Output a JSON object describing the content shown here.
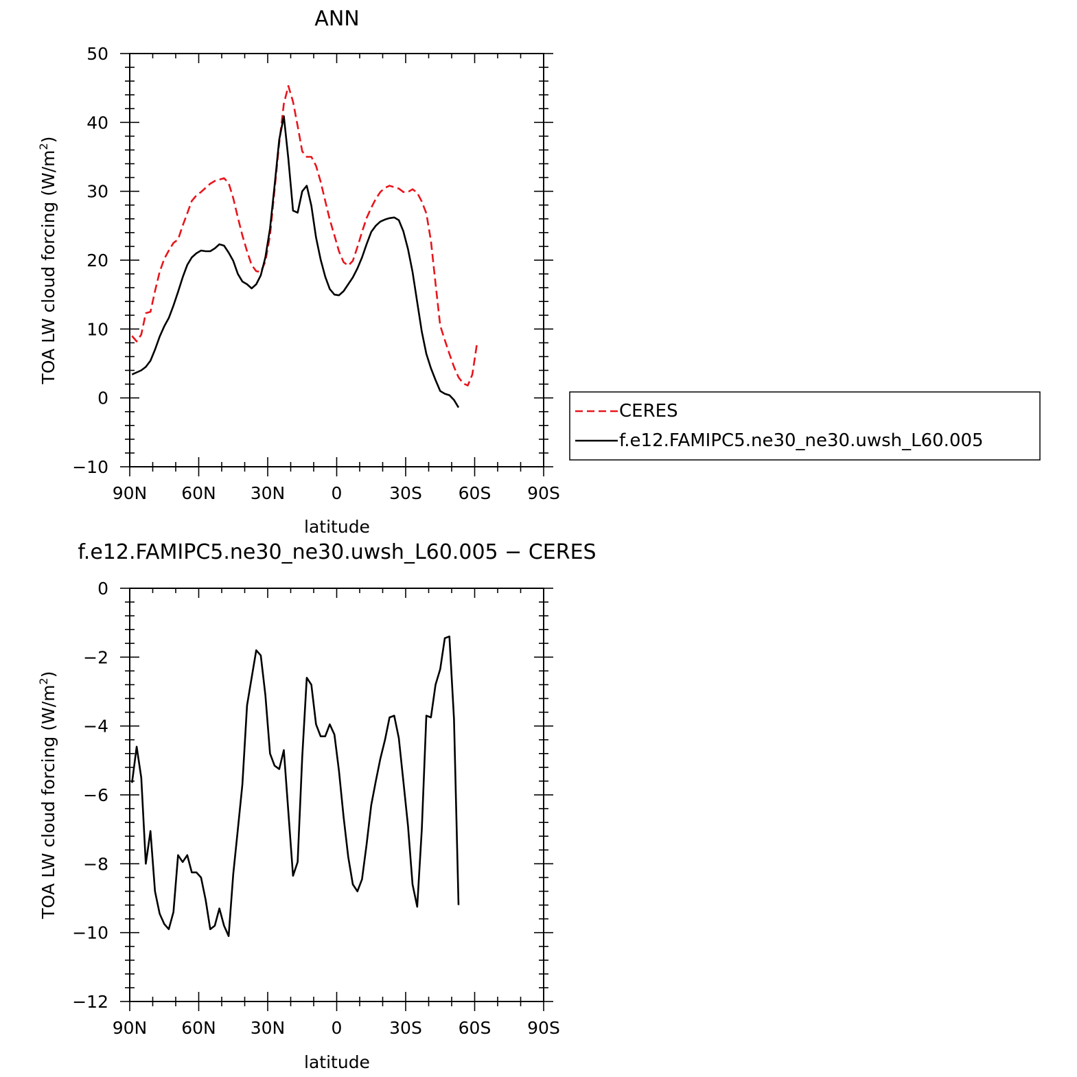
{
  "chart_data": [
    {
      "type": "line",
      "title": "ANN",
      "xlabel": "latitude",
      "ylabel": "TOA LW cloud forcing (W/m",
      "ylabel_sup": "2",
      "ylabel_close": ")",
      "xlim": [
        90,
        -90
      ],
      "ylim": [
        -10,
        50
      ],
      "x_ticks": [
        90,
        60,
        30,
        0,
        -30,
        -60,
        -90
      ],
      "x_tick_labels": [
        "90N",
        "60N",
        "30N",
        "0",
        "30S",
        "60S",
        "90S"
      ],
      "y_ticks": [
        -10,
        0,
        10,
        20,
        30,
        40,
        50
      ],
      "y_tick_labels": [
        "−10",
        "0",
        "10",
        "20",
        "30",
        "40",
        "50"
      ],
      "grid": false,
      "legend_position": "right",
      "series": [
        {
          "name": "CERES",
          "color": "#e8141b",
          "dash": "dashed",
          "points": [
            [
              89,
              9.0
            ],
            [
              87,
              8.2
            ],
            [
              85,
              9.2
            ],
            [
              83,
              12.3
            ],
            [
              81,
              12.5
            ],
            [
              79,
              15.5
            ],
            [
              77,
              18.3
            ],
            [
              75,
              20.2
            ],
            [
              73,
              21.4
            ],
            [
              71,
              22.5
            ],
            [
              69,
              23.0
            ],
            [
              67,
              25.0
            ],
            [
              65,
              26.8
            ],
            [
              63,
              28.6
            ],
            [
              61,
              29.4
            ],
            [
              59,
              29.9
            ],
            [
              57,
              30.5
            ],
            [
              55,
              31.1
            ],
            [
              53,
              31.5
            ],
            [
              51,
              31.7
            ],
            [
              49,
              31.9
            ],
            [
              47,
              31.2
            ],
            [
              45,
              29.0
            ],
            [
              43,
              26.2
            ],
            [
              41,
              23.6
            ],
            [
              39,
              21.3
            ],
            [
              37,
              19.3
            ],
            [
              35,
              18.4
            ],
            [
              33,
              18.3
            ],
            [
              31,
              19.8
            ],
            [
              29,
              23.6
            ],
            [
              27,
              30.2
            ],
            [
              25,
              37.0
            ],
            [
              23,
              42.7
            ],
            [
              21,
              45.3
            ],
            [
              19,
              43.0
            ],
            [
              17,
              39.5
            ],
            [
              15,
              35.8
            ],
            [
              13,
              35.0
            ],
            [
              11,
              35.0
            ],
            [
              9,
              33.7
            ],
            [
              7,
              31.4
            ],
            [
              5,
              28.6
            ],
            [
              3,
              25.9
            ],
            [
              1,
              23.6
            ],
            [
              -1,
              21.3
            ],
            [
              -3,
              19.7
            ],
            [
              -5,
              19.2
            ],
            [
              -7,
              19.9
            ],
            [
              -9,
              21.9
            ],
            [
              -11,
              24.1
            ],
            [
              -13,
              26.1
            ],
            [
              -15,
              27.6
            ],
            [
              -17,
              28.9
            ],
            [
              -19,
              29.9
            ],
            [
              -21,
              30.5
            ],
            [
              -23,
              30.8
            ],
            [
              -25,
              30.6
            ],
            [
              -27,
              30.4
            ],
            [
              -29,
              29.9
            ],
            [
              -31,
              29.9
            ],
            [
              -33,
              30.3
            ],
            [
              -35,
              29.8
            ],
            [
              -37,
              28.5
            ],
            [
              -39,
              26.8
            ],
            [
              -41,
              22.8
            ],
            [
              -43,
              16.6
            ],
            [
              -45,
              10.5
            ],
            [
              -47,
              8.4
            ],
            [
              -49,
              6.4
            ],
            [
              -51,
              4.5
            ],
            [
              -53,
              3.0
            ],
            [
              -55,
              2.1
            ],
            [
              -57,
              1.8
            ],
            [
              -59,
              3.4
            ],
            [
              -61,
              7.9
            ]
          ]
        },
        {
          "name": "f.e12.FAMIPC5.ne30_ne30.uwsh_L60.005",
          "color": "#000000",
          "dash": "solid",
          "points": [
            [
              89,
              3.4
            ],
            [
              87,
              3.7
            ],
            [
              85,
              4.0
            ],
            [
              83,
              4.5
            ],
            [
              81,
              5.4
            ],
            [
              79,
              7.0
            ],
            [
              77,
              8.9
            ],
            [
              75,
              10.4
            ],
            [
              73,
              11.6
            ],
            [
              71,
              13.4
            ],
            [
              69,
              15.4
            ],
            [
              67,
              17.5
            ],
            [
              65,
              19.3
            ],
            [
              63,
              20.4
            ],
            [
              61,
              21.0
            ],
            [
              59,
              21.4
            ],
            [
              57,
              21.3
            ],
            [
              55,
              21.3
            ],
            [
              53,
              21.7
            ],
            [
              51,
              22.3
            ],
            [
              49,
              22.1
            ],
            [
              47,
              21.1
            ],
            [
              45,
              19.9
            ],
            [
              43,
              18.0
            ],
            [
              41,
              16.9
            ],
            [
              39,
              16.5
            ],
            [
              37,
              15.9
            ],
            [
              35,
              16.5
            ],
            [
              33,
              17.8
            ],
            [
              31,
              20.4
            ],
            [
              29,
              24.6
            ],
            [
              27,
              30.8
            ],
            [
              25,
              37.5
            ],
            [
              23,
              40.9
            ],
            [
              21,
              34.7
            ],
            [
              19,
              27.2
            ],
            [
              17,
              26.9
            ],
            [
              15,
              30.0
            ],
            [
              13,
              30.8
            ],
            [
              11,
              27.9
            ],
            [
              9,
              23.3
            ],
            [
              7,
              20.1
            ],
            [
              5,
              17.6
            ],
            [
              3,
              15.8
            ],
            [
              1,
              15.0
            ],
            [
              -1,
              14.9
            ],
            [
              -3,
              15.5
            ],
            [
              -5,
              16.5
            ],
            [
              -7,
              17.5
            ],
            [
              -9,
              18.8
            ],
            [
              -11,
              20.4
            ],
            [
              -13,
              22.3
            ],
            [
              -15,
              24.1
            ],
            [
              -17,
              25.0
            ],
            [
              -19,
              25.6
            ],
            [
              -21,
              25.9
            ],
            [
              -23,
              26.1
            ],
            [
              -25,
              26.2
            ],
            [
              -27,
              25.8
            ],
            [
              -29,
              24.2
            ],
            [
              -31,
              21.6
            ],
            [
              -33,
              18.3
            ],
            [
              -35,
              13.9
            ],
            [
              -37,
              9.6
            ],
            [
              -39,
              6.4
            ],
            [
              -41,
              4.3
            ],
            [
              -43,
              2.6
            ],
            [
              -45,
              1.0
            ],
            [
              -47,
              0.6
            ],
            [
              -49,
              0.4
            ],
            [
              -51,
              -0.3
            ],
            [
              -53,
              -1.4
            ]
          ]
        }
      ]
    },
    {
      "type": "line",
      "title": "f.e12.FAMIPC5.ne30_ne30.uwsh_L60.005 − CERES",
      "xlabel": "latitude",
      "ylabel": "TOA LW cloud forcing (W/m",
      "ylabel_sup": "2",
      "ylabel_close": ")",
      "xlim": [
        90,
        -90
      ],
      "ylim": [
        -12,
        0
      ],
      "x_ticks": [
        90,
        60,
        30,
        0,
        -30,
        -60,
        -90
      ],
      "x_tick_labels": [
        "90N",
        "60N",
        "30N",
        "0",
        "30S",
        "60S",
        "90S"
      ],
      "y_ticks": [
        -12,
        -10,
        -8,
        -6,
        -4,
        -2,
        0
      ],
      "y_tick_labels": [
        "−12",
        "−10",
        "−8",
        "−6",
        "−4",
        "−2",
        "0"
      ],
      "grid": false,
      "series": [
        {
          "color": "#000000",
          "dash": "solid",
          "points": [
            [
              89,
              -5.65
            ],
            [
              87,
              -4.6
            ],
            [
              85,
              -5.5
            ],
            [
              83,
              -8.0
            ],
            [
              81,
              -7.05
            ],
            [
              79,
              -8.8
            ],
            [
              77,
              -9.45
            ],
            [
              75,
              -9.75
            ],
            [
              73,
              -9.9
            ],
            [
              71,
              -9.4
            ],
            [
              69,
              -7.75
            ],
            [
              67,
              -7.95
            ],
            [
              65,
              -7.75
            ],
            [
              63,
              -8.25
            ],
            [
              61,
              -8.25
            ],
            [
              59,
              -8.4
            ],
            [
              57,
              -9.05
            ],
            [
              55,
              -9.9
            ],
            [
              53,
              -9.8
            ],
            [
              51,
              -9.3
            ],
            [
              49,
              -9.8
            ],
            [
              47,
              -10.1
            ],
            [
              45,
              -8.3
            ],
            [
              43,
              -7.0
            ],
            [
              41,
              -5.7
            ],
            [
              39,
              -3.4
            ],
            [
              37,
              -2.6
            ],
            [
              35,
              -1.8
            ],
            [
              33,
              -1.95
            ],
            [
              31,
              -3.1
            ],
            [
              29,
              -4.8
            ],
            [
              27,
              -5.15
            ],
            [
              25,
              -5.25
            ],
            [
              23,
              -4.7
            ],
            [
              21,
              -6.5
            ],
            [
              19,
              -8.35
            ],
            [
              17,
              -7.95
            ],
            [
              15,
              -4.9
            ],
            [
              13,
              -2.6
            ],
            [
              11,
              -2.8
            ],
            [
              9,
              -3.95
            ],
            [
              7,
              -4.3
            ],
            [
              5,
              -4.3
            ],
            [
              3,
              -3.95
            ],
            [
              1,
              -4.25
            ],
            [
              -1,
              -5.3
            ],
            [
              -3,
              -6.65
            ],
            [
              -5,
              -7.8
            ],
            [
              -7,
              -8.6
            ],
            [
              -9,
              -8.8
            ],
            [
              -11,
              -8.45
            ],
            [
              -13,
              -7.45
            ],
            [
              -15,
              -6.3
            ],
            [
              -17,
              -5.6
            ],
            [
              -19,
              -4.95
            ],
            [
              -21,
              -4.4
            ],
            [
              -23,
              -3.75
            ],
            [
              -25,
              -3.7
            ],
            [
              -27,
              -4.35
            ],
            [
              -29,
              -5.6
            ],
            [
              -31,
              -6.9
            ],
            [
              -33,
              -8.6
            ],
            [
              -35,
              -9.25
            ],
            [
              -37,
              -7.0
            ],
            [
              -39,
              -3.7
            ],
            [
              -41,
              -3.75
            ],
            [
              -43,
              -2.8
            ],
            [
              -45,
              -2.35
            ],
            [
              -47,
              -1.45
            ],
            [
              -49,
              -1.4
            ],
            [
              -51,
              -3.8
            ],
            [
              -53,
              -9.2
            ]
          ]
        }
      ]
    }
  ]
}
